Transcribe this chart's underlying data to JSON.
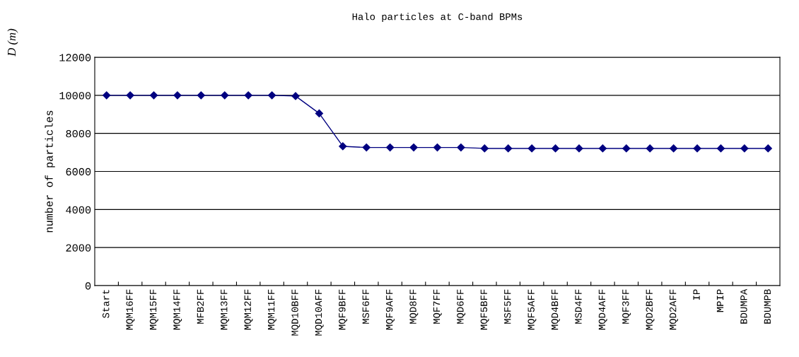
{
  "chart_data": {
    "type": "line",
    "title": "Halo particles at C-band BPMs",
    "ylabel": "number of particles",
    "annotations": [
      "D (m)"
    ],
    "categories": [
      "Start",
      "MQM16FF",
      "MQM15FF",
      "MQM14FF",
      "MFB2FF",
      "MQM13FF",
      "MQM12FF",
      "MQM11FF",
      "MQD10BFF",
      "MQD10AFF",
      "MQF9BFF",
      "MSF6FF",
      "MQF9AFF",
      "MQD8FF",
      "MQF7FF",
      "MQD6FF",
      "MQF5BFF",
      "MSF5FF",
      "MQF5AFF",
      "MQD4BFF",
      "MSD4FF",
      "MQD4AFF",
      "MQF3FF",
      "MQD2BFF",
      "MQD2AFF",
      "IP",
      "MPIP",
      "BDUMPA",
      "BDUMPB"
    ],
    "series": [
      {
        "color": "#000080",
        "values": [
          10000,
          10000,
          10000,
          10000,
          10000,
          10000,
          10000,
          10000,
          9960,
          9050,
          7320,
          7260,
          7260,
          7260,
          7260,
          7260,
          7210,
          7210,
          7210,
          7210,
          7210,
          7210,
          7210,
          7210,
          7210,
          7210,
          7210,
          7210,
          7210
        ]
      }
    ],
    "ylim": [
      0,
      12000
    ],
    "yticks": [
      0,
      2000,
      4000,
      6000,
      8000,
      10000,
      12000
    ],
    "grid": "y",
    "marker": "diamond",
    "line_style": "solid",
    "legend": false
  }
}
